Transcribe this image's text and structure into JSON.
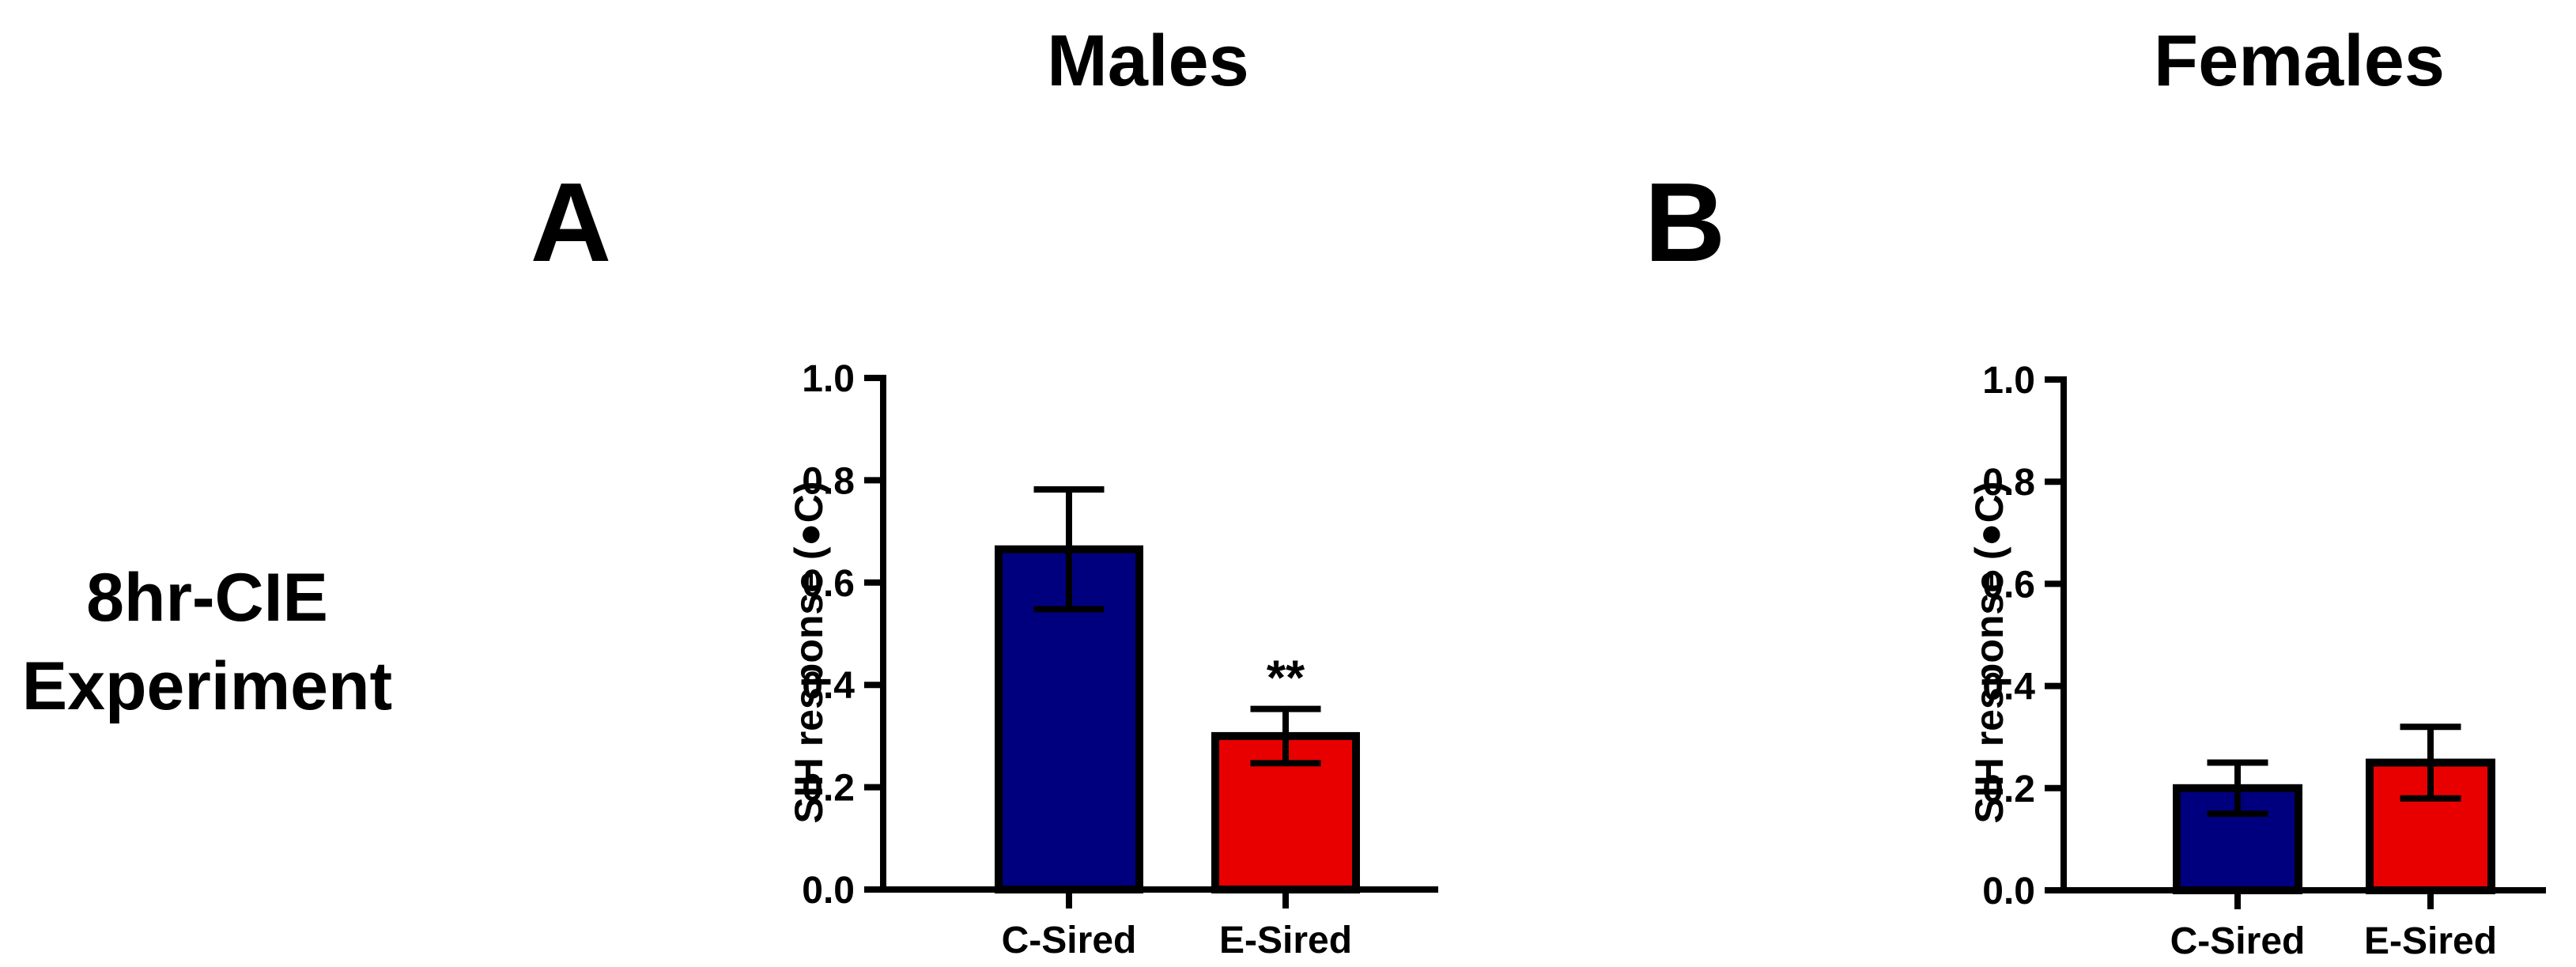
{
  "figure": {
    "row_label_line1": "8hr-CIE",
    "row_label_line2": "Experiment"
  },
  "chart_data": [
    {
      "type": "bar",
      "column_title": "Males",
      "panel_label": "A",
      "categories": [
        "C-Sired",
        "E-Sired"
      ],
      "values": [
        0.665,
        0.3
      ],
      "errors": [
        0.117,
        0.053
      ],
      "colors": [
        "#00007F",
        "#E80000"
      ],
      "significance": [
        "",
        "**"
      ],
      "ylabel": "SIH response (●C)",
      "ylim": [
        0,
        1.0
      ],
      "yticks": [
        0.0,
        0.2,
        0.4,
        0.6,
        0.8,
        1.0
      ],
      "ytick_labels": [
        "0.0",
        "0.2",
        "0.4",
        "0.6",
        "0.8",
        "1.0"
      ]
    },
    {
      "type": "bar",
      "column_title": "Females",
      "panel_label": "B",
      "categories": [
        "C-Sired",
        "E-Sired"
      ],
      "values": [
        0.2,
        0.25
      ],
      "errors": [
        0.05,
        0.07
      ],
      "colors": [
        "#00007F",
        "#E80000"
      ],
      "significance": [
        "",
        ""
      ],
      "ylabel": "SIH response (●C)",
      "ylim": [
        0,
        1.0
      ],
      "yticks": [
        0.0,
        0.2,
        0.4,
        0.6,
        0.8,
        1.0
      ],
      "ytick_labels": [
        "0.0",
        "0.2",
        "0.4",
        "0.6",
        "0.8",
        "1.0"
      ]
    }
  ]
}
